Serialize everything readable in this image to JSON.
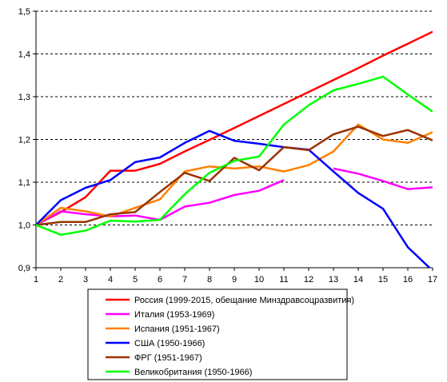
{
  "chart_data": {
    "type": "line",
    "title": "",
    "xlabel": "",
    "ylabel": "",
    "x": [
      1,
      2,
      3,
      4,
      5,
      6,
      7,
      8,
      9,
      10,
      11,
      12,
      13,
      14,
      15,
      16,
      17
    ],
    "xlim": [
      1,
      17
    ],
    "ylim": [
      0.9,
      1.5
    ],
    "y_ticks": [
      "0,9",
      "1,0",
      "1,1",
      "1,2",
      "1,3",
      "1,4",
      "1,5"
    ],
    "grid": "horizontal dashed",
    "legend_position": "bottom",
    "series": [
      {
        "name": "Россия (1999-2015, обещание Минздравсоцразвития)",
        "color": "#ff0000",
        "values": [
          1.0,
          1.03,
          1.065,
          1.127,
          1.127,
          1.143,
          1.172,
          1.199,
          1.227,
          1.255,
          1.283,
          1.311,
          1.339,
          1.367,
          1.396,
          1.424,
          1.452
        ]
      },
      {
        "name": "Италия (1953-1969)",
        "color": "#ff00ff",
        "values": [
          1.0,
          1.032,
          1.025,
          1.02,
          1.022,
          1.012,
          1.043,
          1.052,
          1.07,
          1.08,
          1.105,
          null,
          1.132,
          1.12,
          1.103,
          1.084,
          1.088
        ]
      },
      {
        "name": "Испания (1951-1967)",
        "color": "#ff8000",
        "values": [
          1.0,
          1.04,
          1.032,
          1.02,
          1.04,
          1.06,
          1.125,
          1.137,
          1.132,
          1.137,
          1.125,
          1.14,
          1.172,
          1.235,
          1.2,
          1.192,
          1.217
        ]
      },
      {
        "name": "США (1950-1966)",
        "color": "#0000ff",
        "values": [
          1.0,
          1.058,
          1.087,
          1.105,
          1.147,
          1.158,
          1.192,
          1.22,
          1.197,
          1.19,
          1.182,
          1.176,
          1.125,
          1.075,
          1.038,
          0.948,
          0.893
        ]
      },
      {
        "name": "ФРГ (1951-1967)",
        "color": "#993300",
        "values": [
          1.0,
          1.007,
          1.007,
          1.025,
          1.03,
          1.077,
          1.122,
          1.103,
          1.157,
          1.128,
          1.182,
          1.175,
          1.212,
          1.23,
          1.208,
          1.222,
          1.198
        ]
      },
      {
        "name": "Великобритания (1950-1966)",
        "color": "#00ff00",
        "values": [
          1.0,
          0.977,
          0.987,
          1.01,
          1.008,
          1.012,
          1.072,
          1.122,
          1.15,
          1.16,
          1.235,
          1.28,
          1.315,
          1.33,
          1.347,
          1.305,
          1.265
        ]
      }
    ]
  }
}
